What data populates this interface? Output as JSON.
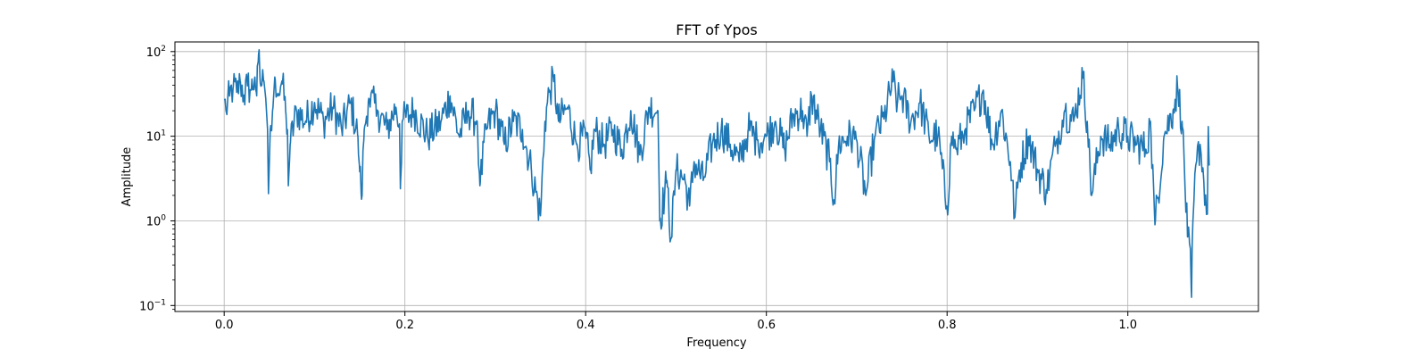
{
  "chart_data": {
    "type": "line",
    "title": "FFT of Ypos",
    "xlabel": "Frequency",
    "ylabel": "Amplitude",
    "x_scale": "linear",
    "y_scale": "log",
    "xlim": [
      -0.0545,
      1.1445
    ],
    "ylim": [
      0.085,
      130
    ],
    "grid": true,
    "legend": "none",
    "xticks": [
      0.0,
      0.2,
      0.4,
      0.6,
      0.8,
      1.0
    ],
    "xtick_labels": [
      "0.0",
      "0.2",
      "0.4",
      "0.6",
      "0.8",
      "1.0"
    ],
    "yticks": [
      0.1,
      1,
      10,
      100
    ],
    "ytick_labels": [
      {
        "base": "10",
        "exp": "−1"
      },
      {
        "base": "10",
        "exp": "0"
      },
      {
        "base": "10",
        "exp": "1"
      },
      {
        "base": "10",
        "exp": "2"
      }
    ],
    "x_start": 0.0,
    "x_end": 1.09,
    "series": [
      {
        "color": "#1f77b4",
        "anchors": [
          [
            0.0,
            27
          ],
          [
            0.002,
            20
          ],
          [
            0.006,
            30
          ],
          [
            0.01,
            38
          ],
          [
            0.014,
            33
          ],
          [
            0.018,
            44
          ],
          [
            0.022,
            30
          ],
          [
            0.026,
            40
          ],
          [
            0.03,
            35
          ],
          [
            0.034,
            50
          ],
          [
            0.036,
            30
          ],
          [
            0.038,
            92
          ],
          [
            0.04,
            42
          ],
          [
            0.044,
            45
          ],
          [
            0.046,
            28
          ],
          [
            0.048,
            12
          ],
          [
            0.049,
            2.1
          ],
          [
            0.051,
            12
          ],
          [
            0.054,
            22
          ],
          [
            0.056,
            50
          ],
          [
            0.06,
            30
          ],
          [
            0.064,
            45
          ],
          [
            0.068,
            20
          ],
          [
            0.07,
            12
          ],
          [
            0.071,
            2.6
          ],
          [
            0.073,
            8
          ],
          [
            0.08,
            20
          ],
          [
            0.09,
            15
          ],
          [
            0.1,
            25
          ],
          [
            0.11,
            15
          ],
          [
            0.12,
            22
          ],
          [
            0.13,
            12
          ],
          [
            0.14,
            25
          ],
          [
            0.148,
            10
          ],
          [
            0.15,
            3.8
          ],
          [
            0.152,
            1.8
          ],
          [
            0.155,
            12
          ],
          [
            0.16,
            28
          ],
          [
            0.17,
            20
          ],
          [
            0.18,
            12
          ],
          [
            0.19,
            22
          ],
          [
            0.194,
            14
          ],
          [
            0.195,
            2.4
          ],
          [
            0.197,
            15
          ],
          [
            0.21,
            20
          ],
          [
            0.225,
            10
          ],
          [
            0.24,
            15
          ],
          [
            0.25,
            30
          ],
          [
            0.26,
            10
          ],
          [
            0.27,
            20
          ],
          [
            0.28,
            15
          ],
          [
            0.283,
            2.6
          ],
          [
            0.29,
            12
          ],
          [
            0.3,
            20
          ],
          [
            0.31,
            8
          ],
          [
            0.32,
            15
          ],
          [
            0.33,
            12
          ],
          [
            0.34,
            4
          ],
          [
            0.35,
            1.15
          ],
          [
            0.355,
            15
          ],
          [
            0.36,
            35
          ],
          [
            0.365,
            45
          ],
          [
            0.37,
            15
          ],
          [
            0.38,
            22
          ],
          [
            0.39,
            8
          ],
          [
            0.4,
            10
          ],
          [
            0.405,
            4
          ],
          [
            0.41,
            12
          ],
          [
            0.42,
            8
          ],
          [
            0.43,
            12
          ],
          [
            0.44,
            7
          ],
          [
            0.45,
            20
          ],
          [
            0.46,
            6
          ],
          [
            0.47,
            22
          ],
          [
            0.48,
            20
          ],
          [
            0.482,
            1
          ],
          [
            0.49,
            3
          ],
          [
            0.4945,
            0.62
          ],
          [
            0.5,
            4
          ],
          [
            0.51,
            3
          ],
          [
            0.515,
            1.5
          ],
          [
            0.52,
            5
          ],
          [
            0.53,
            3
          ],
          [
            0.54,
            8
          ],
          [
            0.55,
            12
          ],
          [
            0.56,
            8
          ],
          [
            0.57,
            5
          ],
          [
            0.58,
            12
          ],
          [
            0.59,
            9
          ],
          [
            0.6,
            10
          ],
          [
            0.61,
            15
          ],
          [
            0.62,
            7
          ],
          [
            0.63,
            18
          ],
          [
            0.64,
            20
          ],
          [
            0.645,
            10
          ],
          [
            0.65,
            30
          ],
          [
            0.66,
            12
          ],
          [
            0.67,
            5
          ],
          [
            0.675,
            1.7
          ],
          [
            0.68,
            8
          ],
          [
            0.69,
            10
          ],
          [
            0.7,
            9
          ],
          [
            0.71,
            2
          ],
          [
            0.72,
            10
          ],
          [
            0.73,
            16
          ],
          [
            0.74,
            45
          ],
          [
            0.745,
            25
          ],
          [
            0.75,
            30
          ],
          [
            0.76,
            15
          ],
          [
            0.77,
            25
          ],
          [
            0.78,
            10
          ],
          [
            0.79,
            10
          ],
          [
            0.8,
            1.4
          ],
          [
            0.805,
            10
          ],
          [
            0.81,
            7
          ],
          [
            0.82,
            12
          ],
          [
            0.83,
            20
          ],
          [
            0.84,
            35
          ],
          [
            0.85,
            8
          ],
          [
            0.86,
            20
          ],
          [
            0.87,
            5
          ],
          [
            0.875,
            1.1
          ],
          [
            0.88,
            4
          ],
          [
            0.89,
            10
          ],
          [
            0.9,
            4
          ],
          [
            0.91,
            2.3
          ],
          [
            0.92,
            8
          ],
          [
            0.93,
            20
          ],
          [
            0.94,
            15
          ],
          [
            0.95,
            52
          ],
          [
            0.955,
            15
          ],
          [
            0.96,
            2
          ],
          [
            0.97,
            10
          ],
          [
            0.98,
            8
          ],
          [
            0.99,
            12
          ],
          [
            1.0,
            10
          ],
          [
            1.01,
            8
          ],
          [
            1.02,
            7
          ],
          [
            1.025,
            15
          ],
          [
            1.03,
            0.9
          ],
          [
            1.04,
            10
          ],
          [
            1.05,
            20
          ],
          [
            1.055,
            38
          ],
          [
            1.06,
            15
          ],
          [
            1.066,
            0.65
          ],
          [
            1.068,
            0.62
          ],
          [
            1.0705,
            0.125
          ],
          [
            1.072,
            1
          ],
          [
            1.076,
            5
          ],
          [
            1.08,
            8
          ],
          [
            1.084,
            3
          ],
          [
            1.088,
            1.2
          ],
          [
            1.089,
            13
          ],
          [
            1.09,
            4.5
          ]
        ]
      }
    ]
  }
}
